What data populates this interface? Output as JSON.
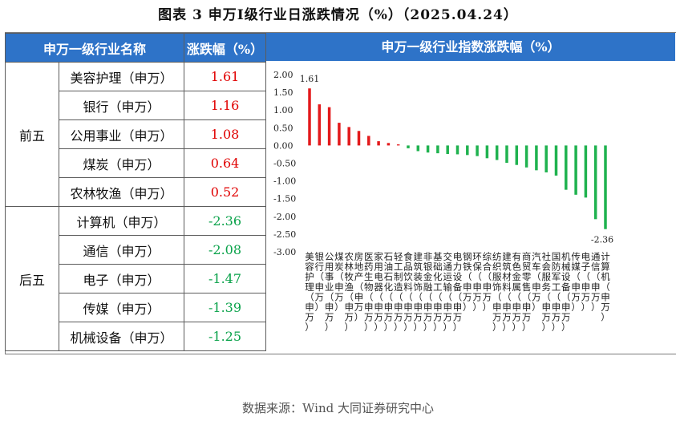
{
  "title": "图表 3   申万Ⅰ级行业日涨跌情况（%）（2025.04.24）",
  "table": {
    "headers": [
      "申万一级行业名称",
      "涨跌幅（%）"
    ],
    "top_label": "前五",
    "bottom_label": "后五",
    "top": [
      {
        "name": "美容护理（申万）",
        "value": "1.61"
      },
      {
        "name": "银行（申万）",
        "value": "1.16"
      },
      {
        "name": "公用事业（申万）",
        "value": "1.08"
      },
      {
        "name": "煤炭（申万）",
        "value": "0.64"
      },
      {
        "name": "农林牧渔（申万）",
        "value": "0.52"
      }
    ],
    "bottom": [
      {
        "name": "计算机（申万）",
        "value": "-2.36"
      },
      {
        "name": "通信（申万）",
        "value": "-2.08"
      },
      {
        "name": "电子（申万）",
        "value": "-1.47"
      },
      {
        "name": "传媒（申万）",
        "value": "-1.39"
      },
      {
        "name": "机械设备（申万）",
        "value": "-1.25"
      }
    ]
  },
  "chart_header": "申万一级行业指数涨跌幅（%）",
  "source": "数据来源：Wind 大同证券研究中心",
  "chart_data": {
    "type": "bar",
    "title": "",
    "xlabel": "",
    "ylabel": "",
    "ylim": [
      -3.0,
      2.0
    ],
    "yticks": [
      "2.00",
      "1.50",
      "1.00",
      "0.50",
      "0.00",
      "-0.50",
      "-1.00",
      "-1.50",
      "-2.00",
      "-2.50",
      "-3.00"
    ],
    "categories": [
      "美容护理（申万）",
      "银行（申万）",
      "公用事业（申万）",
      "煤炭（申万）",
      "农林牧渔（申万）",
      "房地产（申万）",
      "医药生物（申万）",
      "家用电器（申万）",
      "石油石化（申万）",
      "轻工制造（申万）",
      "食品饮料（申万）",
      "建筑装饰（申万）",
      "非银金融（申万）",
      "基础化工（申万）",
      "交通运输（申万）",
      "电力设备（申万）",
      "钢铁（申万）",
      "环保（申万）",
      "综合（申万）",
      "纺织服饰（申万）",
      "建筑材料（申万）",
      "有色金属（申万）",
      "商贸零售（申万）",
      "汽车（申万）",
      "社会服务（申万）",
      "国防军工（申万）",
      "机械设备（申万）",
      "传媒（申万）",
      "电子（申万）",
      "通信（申万）",
      "计算机（申万）"
    ],
    "values": [
      1.61,
      1.16,
      1.08,
      0.64,
      0.52,
      0.41,
      0.27,
      0.12,
      0.07,
      0.03,
      -0.08,
      -0.16,
      -0.2,
      -0.22,
      -0.24,
      -0.25,
      -0.27,
      -0.3,
      -0.36,
      -0.41,
      -0.49,
      -0.55,
      -0.62,
      -0.7,
      -0.76,
      -0.85,
      -1.25,
      -1.39,
      -1.47,
      -2.08,
      -2.36
    ],
    "data_labels": {
      "max": "1.61",
      "min": "-2.36"
    },
    "colors": {
      "positive": "#e31a1c",
      "negative": "#1fb24f"
    },
    "grid": false,
    "legend": "none"
  }
}
